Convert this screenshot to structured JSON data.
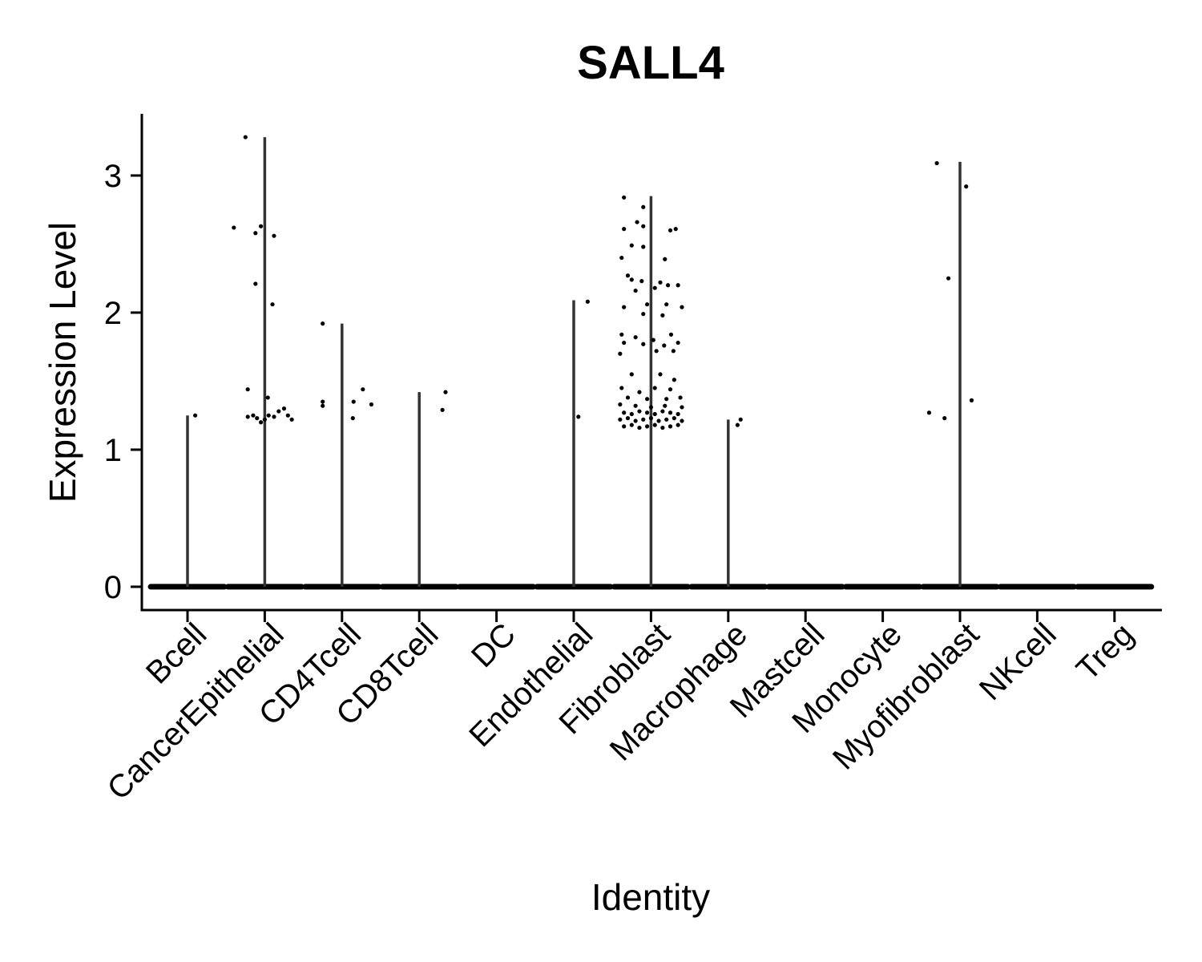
{
  "chart_data": {
    "type": "violin",
    "title": "SALL4",
    "xlabel": "Identity",
    "ylabel": "Expression Level",
    "ylim": [
      -0.17,
      3.45
    ],
    "yticks": [
      0,
      1,
      2,
      3
    ],
    "grid": false,
    "legend": "none",
    "line_color": "#333333",
    "point_color": "#000000",
    "categories": [
      "Bcell",
      "CancerEpithelial",
      "CD4Tcell",
      "CD8Tcell",
      "DC",
      "Endothelial",
      "Fibroblast",
      "Macrophage",
      "Mastcell",
      "Monocyte",
      "Myofibroblast",
      "NKcell",
      "Treg"
    ],
    "groups": [
      {
        "name": "Bcell",
        "max": 1.25,
        "points": [
          [
            0.1,
            1.25
          ]
        ]
      },
      {
        "name": "CancerEpithelial",
        "max": 3.28,
        "points": [
          [
            -0.25,
            3.28
          ],
          [
            -0.4,
            2.62
          ],
          [
            -0.12,
            2.58
          ],
          [
            -0.05,
            2.63
          ],
          [
            0.12,
            2.56
          ],
          [
            -0.12,
            2.21
          ],
          [
            0.1,
            2.06
          ],
          [
            -0.22,
            1.44
          ],
          [
            0.04,
            1.38
          ],
          [
            -0.22,
            1.24
          ],
          [
            -0.15,
            1.25
          ],
          [
            -0.1,
            1.23
          ],
          [
            -0.05,
            1.2
          ],
          [
            0.0,
            1.22
          ],
          [
            0.05,
            1.25
          ],
          [
            0.12,
            1.24
          ],
          [
            0.18,
            1.28
          ],
          [
            0.25,
            1.3
          ],
          [
            0.3,
            1.25
          ],
          [
            0.35,
            1.22
          ]
        ]
      },
      {
        "name": "CD4Tcell",
        "max": 1.92,
        "points": [
          [
            -0.25,
            1.92
          ],
          [
            -0.25,
            1.35
          ],
          [
            -0.25,
            1.32
          ],
          [
            0.15,
            1.35
          ],
          [
            0.27,
            1.44
          ],
          [
            0.14,
            1.23
          ],
          [
            0.38,
            1.33
          ]
        ]
      },
      {
        "name": "CD8Tcell",
        "max": 1.42,
        "points": [
          [
            0.34,
            1.42
          ],
          [
            0.3,
            1.29
          ]
        ]
      },
      {
        "name": "DC",
        "max": 0,
        "points": []
      },
      {
        "name": "Endothelial",
        "max": 2.09,
        "points": [
          [
            0.18,
            2.08
          ],
          [
            0.06,
            1.24
          ]
        ]
      },
      {
        "name": "Fibroblast",
        "max": 2.85,
        "points": [
          [
            -0.35,
            2.84
          ],
          [
            -0.1,
            2.77
          ],
          [
            -0.18,
            2.66
          ],
          [
            -0.35,
            2.61
          ],
          [
            -0.1,
            2.63
          ],
          [
            0.25,
            2.6
          ],
          [
            0.32,
            2.61
          ],
          [
            -0.25,
            2.49
          ],
          [
            -0.1,
            2.48
          ],
          [
            -0.38,
            2.4
          ],
          [
            0.18,
            2.39
          ],
          [
            -0.3,
            2.27
          ],
          [
            -0.25,
            2.24
          ],
          [
            -0.12,
            2.23
          ],
          [
            0.12,
            2.22
          ],
          [
            0.22,
            2.2
          ],
          [
            0.35,
            2.2
          ],
          [
            -0.2,
            2.16
          ],
          [
            0.05,
            2.18
          ],
          [
            -0.35,
            2.04
          ],
          [
            -0.05,
            2.06
          ],
          [
            0.2,
            2.06
          ],
          [
            0.4,
            2.04
          ],
          [
            -0.1,
            1.99
          ],
          [
            0.15,
            1.98
          ],
          [
            -0.38,
            1.84
          ],
          [
            -0.2,
            1.82
          ],
          [
            0.03,
            1.8
          ],
          [
            0.26,
            1.84
          ],
          [
            -0.35,
            1.78
          ],
          [
            -0.1,
            1.77
          ],
          [
            0.17,
            1.76
          ],
          [
            0.35,
            1.78
          ],
          [
            -0.4,
            1.7
          ],
          [
            0.07,
            1.72
          ],
          [
            0.29,
            1.72
          ],
          [
            -0.25,
            1.55
          ],
          [
            0.12,
            1.55
          ],
          [
            0.3,
            1.51
          ],
          [
            -0.38,
            1.45
          ],
          [
            -0.15,
            1.42
          ],
          [
            0.05,
            1.45
          ],
          [
            0.25,
            1.44
          ],
          [
            -0.3,
            1.38
          ],
          [
            -0.05,
            1.37
          ],
          [
            0.2,
            1.37
          ],
          [
            0.38,
            1.38
          ],
          [
            -0.4,
            1.33
          ],
          [
            -0.2,
            1.32
          ],
          [
            0.0,
            1.31
          ],
          [
            0.18,
            1.32
          ],
          [
            0.4,
            1.31
          ],
          [
            -0.35,
            1.27
          ],
          [
            -0.25,
            1.26
          ],
          [
            -0.15,
            1.28
          ],
          [
            -0.05,
            1.27
          ],
          [
            0.05,
            1.26
          ],
          [
            0.15,
            1.28
          ],
          [
            0.25,
            1.27
          ],
          [
            0.35,
            1.26
          ],
          [
            -0.4,
            1.22
          ],
          [
            -0.3,
            1.23
          ],
          [
            -0.2,
            1.21
          ],
          [
            -0.1,
            1.22
          ],
          [
            0.0,
            1.23
          ],
          [
            0.1,
            1.21
          ],
          [
            0.2,
            1.22
          ],
          [
            0.3,
            1.23
          ],
          [
            0.4,
            1.21
          ],
          [
            -0.35,
            1.17
          ],
          [
            -0.25,
            1.18
          ],
          [
            -0.15,
            1.16
          ],
          [
            -0.05,
            1.17
          ],
          [
            0.05,
            1.18
          ],
          [
            0.15,
            1.16
          ],
          [
            0.25,
            1.17
          ],
          [
            0.35,
            1.18
          ]
        ]
      },
      {
        "name": "Macrophage",
        "max": 1.22,
        "points": [
          [
            0.16,
            1.22
          ],
          [
            0.12,
            1.18
          ]
        ]
      },
      {
        "name": "Mastcell",
        "max": 0,
        "points": []
      },
      {
        "name": "Monocyte",
        "max": 0,
        "points": []
      },
      {
        "name": "Myofibroblast",
        "max": 3.1,
        "points": [
          [
            -0.3,
            3.09
          ],
          [
            0.08,
            2.92
          ],
          [
            -0.15,
            2.25
          ],
          [
            0.15,
            1.36
          ],
          [
            -0.4,
            1.27
          ],
          [
            -0.2,
            1.23
          ]
        ]
      },
      {
        "name": "NKcell",
        "max": 0,
        "points": []
      },
      {
        "name": "Treg",
        "max": 0,
        "points": []
      }
    ]
  }
}
